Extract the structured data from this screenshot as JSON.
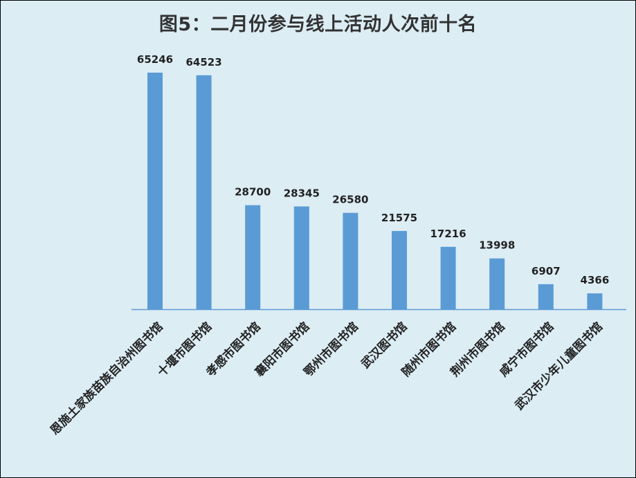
{
  "chart_data": {
    "type": "bar",
    "title": "图5：二月份参与线上活动人次前十名",
    "categories": [
      "恩施土家族苗族自治州图书馆",
      "十堰市图书馆",
      "孝感市图书馆",
      "襄阳市图书馆",
      "鄂州市图书馆",
      "武汉图书馆",
      "随州市图书馆",
      "荆州市图书馆",
      "咸宁市图书馆",
      "武汉市少年儿童图书馆"
    ],
    "values": [
      65246,
      64523,
      28700,
      28345,
      26580,
      21575,
      17216,
      13998,
      6907,
      4366
    ],
    "data_labels": [
      "65246",
      "64523",
      "28700",
      "28345",
      "26580",
      "21575",
      "17216",
      "13998",
      "6907",
      "4366"
    ],
    "ylim": [
      0,
      65246
    ],
    "grid": false,
    "legend": "none",
    "colors": {
      "bar": "#5b9bd5",
      "axis": "#5b9bd5",
      "background": "#dcedf4",
      "border": "#000000",
      "text": "#222222"
    }
  }
}
